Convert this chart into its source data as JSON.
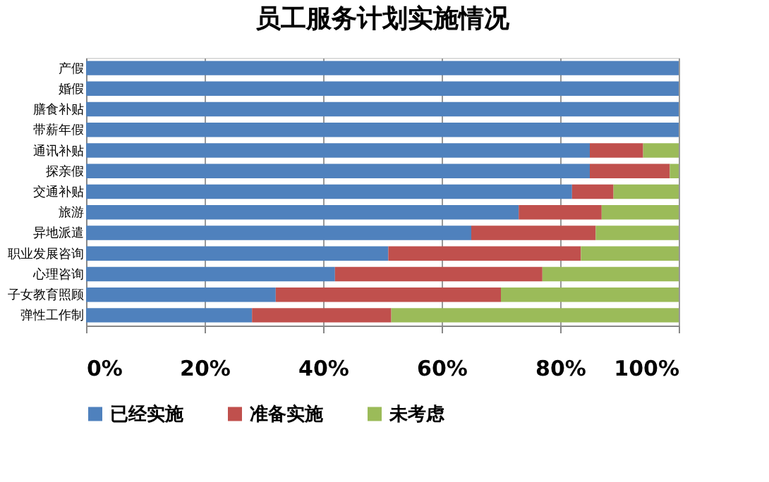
{
  "chart_data": {
    "type": "bar",
    "orientation": "horizontal",
    "stacked": true,
    "title": "员工服务计划实施情况",
    "categories": [
      "产假",
      "婚假",
      "膳食补贴",
      "带薪年假",
      "通讯补贴",
      "探亲假",
      "交通补贴",
      "旅游",
      "异地派遣",
      "职业发展咨询",
      "心理咨询",
      "子女教育照顾",
      "弹性工作制"
    ],
    "series": [
      {
        "name": "已经实施",
        "color": "#4f81bd",
        "values": [
          100,
          100,
          100,
          100,
          85,
          85,
          82,
          73,
          65,
          51,
          42,
          32,
          28
        ]
      },
      {
        "name": "准备实施",
        "color": "#c0504d",
        "values": [
          0,
          0,
          0,
          0,
          9,
          13.5,
          7,
          14,
          21,
          32.5,
          35,
          38,
          23.5
        ]
      },
      {
        "name": "未考虑",
        "color": "#9bbb59",
        "values": [
          0,
          0,
          0,
          0,
          6,
          1.5,
          11,
          13,
          14,
          16.5,
          23,
          30,
          48.5
        ]
      }
    ],
    "xlim": [
      0,
      100
    ],
    "xticks": [
      {
        "value": 0,
        "label": "0%"
      },
      {
        "value": 20,
        "label": "20%"
      },
      {
        "value": 40,
        "label": "40%"
      },
      {
        "value": 60,
        "label": "60%"
      },
      {
        "value": 80,
        "label": "80%"
      },
      {
        "value": 100,
        "label": "100%"
      }
    ],
    "grid": "x",
    "legend": "bottom"
  }
}
